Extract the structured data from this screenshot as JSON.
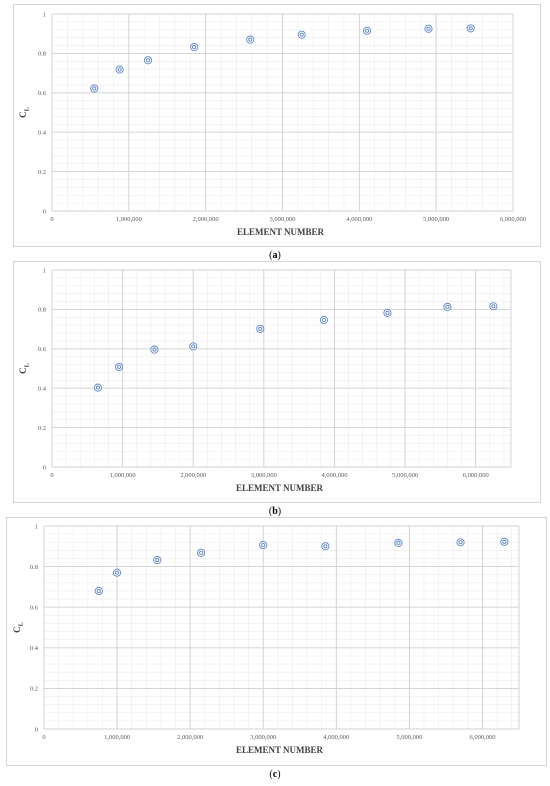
{
  "colors": {
    "marker": "#5b86c8",
    "major_grid": "#d0d0d0",
    "minor_grid": "#ececec"
  },
  "chart_data": [
    {
      "type": "scatter",
      "caption": "a",
      "xlabel": "ELEMENT NUMBER",
      "ylabel": "C",
      "ylabel_sub": "L",
      "xlim": [
        0,
        6000000
      ],
      "ylim": [
        0,
        1
      ],
      "x_ticks": [
        0,
        1000000,
        2000000,
        3000000,
        4000000,
        5000000,
        6000000
      ],
      "x_tick_labels": [
        "0",
        "1,000,000",
        "2,000,000",
        "3,000,000",
        "4,000,000",
        "5,000,000",
        "6,000,000"
      ],
      "y_ticks": [
        0,
        0.2,
        0.4,
        0.6,
        0.8,
        1
      ],
      "y_tick_labels": [
        "0",
        "0.2",
        "0.4",
        "0.6",
        "0.8",
        "1"
      ],
      "grid": true,
      "x": [
        550000,
        880000,
        1250000,
        1850000,
        2580000,
        3250000,
        4100000,
        4900000,
        5450000
      ],
      "y": [
        0.622,
        0.718,
        0.765,
        0.832,
        0.87,
        0.895,
        0.915,
        0.925,
        0.927
      ]
    },
    {
      "type": "scatter",
      "caption": "b",
      "xlabel": "ELEMENT NUMBER",
      "ylabel": "C",
      "ylabel_sub": "L",
      "xlim": [
        0,
        6500000
      ],
      "ylim": [
        0,
        1
      ],
      "x_ticks": [
        0,
        1000000,
        2000000,
        3000000,
        4000000,
        5000000,
        6000000
      ],
      "x_tick_labels": [
        "0",
        "1,000,000",
        "2,000,000",
        "3,000,000",
        "4,000,000",
        "5,000,000",
        "6,000,000"
      ],
      "y_ticks": [
        0,
        0.2,
        0.4,
        0.6,
        0.8,
        1
      ],
      "y_tick_labels": [
        "0",
        "0.2",
        "0.4",
        "0.6",
        "0.8",
        "1"
      ],
      "grid": true,
      "x": [
        650000,
        950000,
        1450000,
        2000000,
        2950000,
        3850000,
        4750000,
        5600000,
        6250000
      ],
      "y": [
        0.403,
        0.508,
        0.596,
        0.612,
        0.701,
        0.746,
        0.782,
        0.813,
        0.816
      ]
    },
    {
      "type": "scatter",
      "caption": "c",
      "xlabel": "ELEMENT NUMBER",
      "ylabel": "C",
      "ylabel_sub": "L",
      "xlim": [
        0,
        6500000
      ],
      "ylim": [
        0,
        1
      ],
      "x_ticks": [
        0,
        1000000,
        2000000,
        3000000,
        4000000,
        5000000,
        6000000
      ],
      "x_tick_labels": [
        "0",
        "1,000,000",
        "2,000,000",
        "3,000,000",
        "4,000,000",
        "5,000,000",
        "6,000,000"
      ],
      "y_ticks": [
        0,
        0.2,
        0.4,
        0.6,
        0.8,
        1
      ],
      "y_tick_labels": [
        "0",
        "0.2",
        "0.4",
        "0.6",
        "0.8",
        "1"
      ],
      "grid": true,
      "x": [
        750000,
        1000000,
        1550000,
        2150000,
        3000000,
        3850000,
        4850000,
        5700000,
        6300000
      ],
      "y": [
        0.68,
        0.77,
        0.832,
        0.868,
        0.906,
        0.9,
        0.917,
        0.92,
        0.922
      ]
    }
  ]
}
